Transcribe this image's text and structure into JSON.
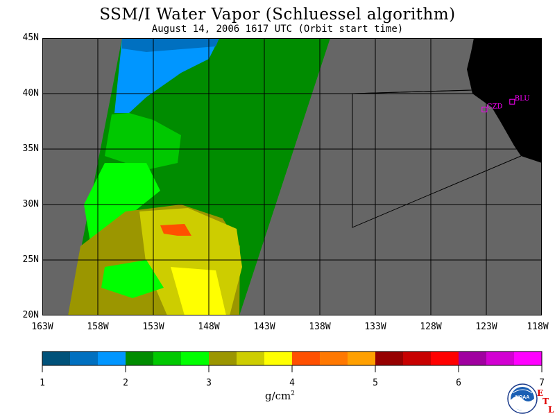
{
  "title": "SSM/I Water Vapor (Schluessel algorithm)",
  "subtitle": "August 14, 2006  1617 UTC  (Orbit start time)",
  "map": {
    "lat_labels": [
      "45N",
      "40N",
      "35N",
      "30N",
      "25N",
      "20N"
    ],
    "lon_labels": [
      "163W",
      "158W",
      "153W",
      "148W",
      "143W",
      "138W",
      "133W",
      "128W",
      "123W",
      "118W"
    ],
    "lat_range": [
      20,
      45
    ],
    "lon_range": [
      -163,
      -118
    ],
    "stations": [
      {
        "name": "CZD",
        "lat": 38.6,
        "lon": -123.2
      },
      {
        "name": "BLU",
        "lat": 39.3,
        "lon": -120.7
      }
    ],
    "background_color": "#666666",
    "land_color": "#000000"
  },
  "colorbar": {
    "colors": [
      "#00527a",
      "#0070c0",
      "#0096ff",
      "#008c00",
      "#00c800",
      "#00ff00",
      "#9b9600",
      "#cdcd00",
      "#ffff00",
      "#ff5000",
      "#ff7800",
      "#ffa000",
      "#960000",
      "#c80000",
      "#ff0000",
      "#a000a0",
      "#d200d2",
      "#ff00ff"
    ],
    "tick_labels": [
      "1",
      "2",
      "3",
      "4",
      "5",
      "6",
      "7"
    ],
    "range": [
      1,
      7
    ],
    "units": "g/cm",
    "units_exponent": "2"
  },
  "logo": {
    "noaa_text": "NOAA",
    "etl_letters": [
      "E",
      "T",
      "L"
    ]
  }
}
